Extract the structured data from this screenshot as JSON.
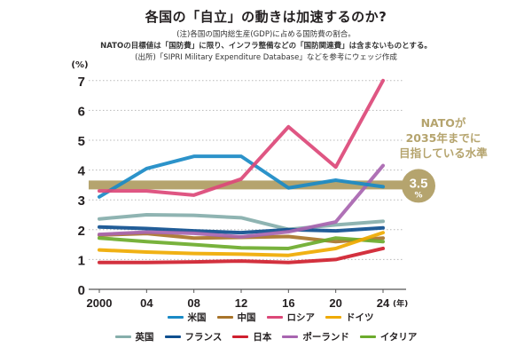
{
  "header": {
    "title": "各国の「自立」の動きは加速するのか?",
    "note1": "(注)各国の国内総生産(GDP)に占める国防費の割合。",
    "note2": "NATOの目標値は「国防費」に限り、インフラ整備などの「国防関連費」は含まないものとする。",
    "note3": "(出所)「SIPRI Military Expenditure Database」などを参考にウェッジ作成"
  },
  "chart_data": {
    "type": "line",
    "title": "各国の「自立」の動きは加速するのか?",
    "ylabel": "(%)",
    "xlabel": "(年)",
    "x": [
      2000,
      2004,
      2008,
      2012,
      2016,
      2020,
      2024
    ],
    "x_tick_labels": [
      "2000",
      "04",
      "08",
      "12",
      "16",
      "20",
      "24"
    ],
    "x_unit_label": "(年)",
    "y_ticks": [
      0,
      1,
      2,
      3,
      4,
      5,
      6,
      7
    ],
    "ylim": [
      0,
      7
    ],
    "grid": "horizontal dotted",
    "reference_line": {
      "value": 3.5,
      "label": "3.5",
      "unit": "%",
      "annotation_lines": [
        "NATOが",
        "2035年までに",
        "目指している水準"
      ],
      "color": "#b5a46e"
    },
    "series": [
      {
        "name": "英国",
        "color": "#86aeab",
        "values": [
          2.36,
          2.5,
          2.48,
          2.4,
          2.01,
          2.16,
          2.28
        ]
      },
      {
        "name": "フランス",
        "color": "#0f4f8f",
        "values": [
          2.09,
          2.04,
          1.96,
          1.9,
          2.0,
          1.96,
          2.06
        ]
      },
      {
        "name": "中国",
        "color": "#a8742a",
        "values": [
          1.82,
          1.87,
          1.72,
          1.74,
          1.77,
          1.6,
          1.72
        ]
      },
      {
        "name": "ポーランド",
        "color": "#a865b0",
        "values": [
          1.84,
          1.92,
          1.88,
          1.76,
          1.93,
          2.26,
          4.15
        ]
      },
      {
        "name": "イタリア",
        "color": "#6cab2c",
        "values": [
          1.72,
          1.6,
          1.5,
          1.39,
          1.37,
          1.72,
          1.6
        ]
      },
      {
        "name": "ドイツ",
        "color": "#efaa00",
        "values": [
          1.32,
          1.25,
          1.2,
          1.18,
          1.14,
          1.37,
          1.9
        ]
      },
      {
        "name": "日本",
        "color": "#cf1f2e",
        "values": [
          0.9,
          0.9,
          0.92,
          0.95,
          0.9,
          1.0,
          1.37
        ]
      },
      {
        "name": "米国",
        "color": "#1a8ac6",
        "values": [
          3.1,
          4.05,
          4.46,
          4.46,
          3.4,
          3.66,
          3.44
        ]
      },
      {
        "name": "ロシア",
        "color": "#dc4878",
        "values": [
          3.3,
          3.3,
          3.16,
          3.7,
          5.45,
          4.1,
          7.0
        ]
      }
    ]
  },
  "legend": {
    "row1": [
      {
        "name": "米国",
        "color": "#1a8ac6"
      },
      {
        "name": "中国",
        "color": "#a8742a"
      },
      {
        "name": "ロシア",
        "color": "#dc4878"
      },
      {
        "name": "ドイツ",
        "color": "#efaa00"
      }
    ],
    "row2": [
      {
        "name": "英国",
        "color": "#86aeab"
      },
      {
        "name": "フランス",
        "color": "#0f4f8f"
      },
      {
        "name": "日本",
        "color": "#cf1f2e"
      },
      {
        "name": "ポーランド",
        "color": "#a865b0"
      },
      {
        "name": "イタリア",
        "color": "#6cab2c"
      }
    ]
  }
}
